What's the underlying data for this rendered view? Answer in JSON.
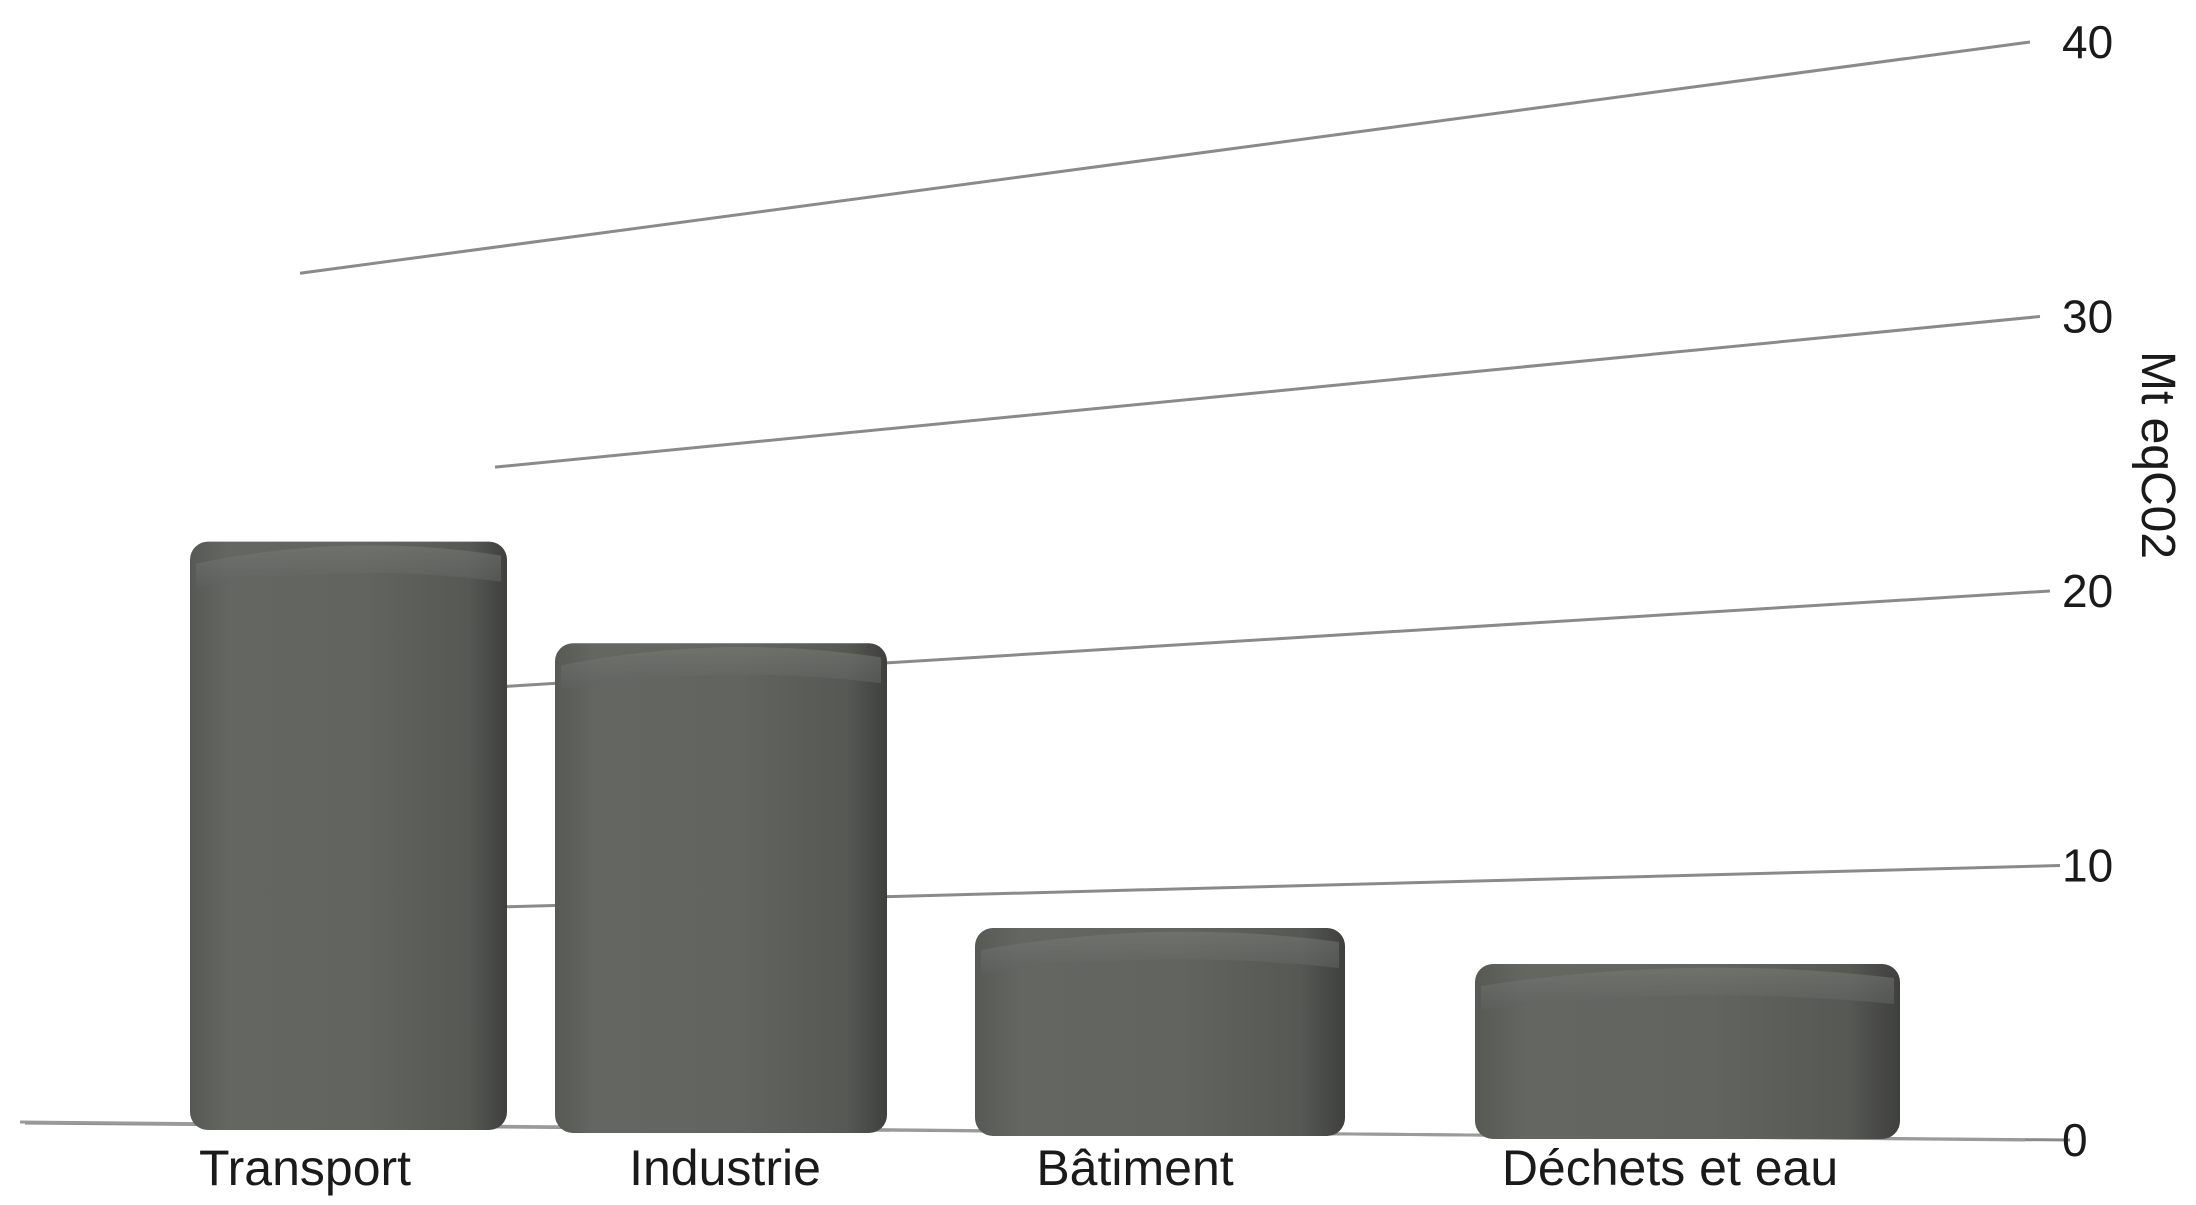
{
  "chart_data": {
    "type": "bar",
    "categories": [
      "Transport",
      "Industrie",
      "Bâtiment",
      "Déchets et eau"
    ],
    "values": [
      27.2,
      21.3,
      8.4,
      6.6
    ],
    "ylabel": "Mt eqC02",
    "ylim": [
      0,
      40
    ],
    "yticks": [
      0,
      10,
      20,
      30,
      40
    ],
    "grid": true,
    "legend": "none",
    "bar_color": "#5e605d"
  }
}
